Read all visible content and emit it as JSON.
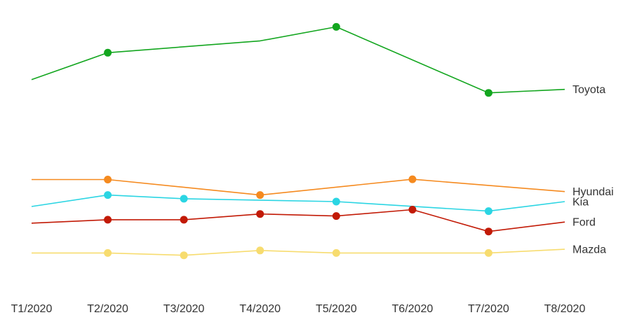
{
  "chart_data": {
    "type": "line",
    "categories": [
      "T1/2020",
      "T2/2020",
      "T3/2020",
      "T4/2020",
      "T5/2020",
      "T6/2020",
      "T7/2020",
      "T8/2020"
    ],
    "ylim": [
      0,
      100
    ],
    "grid": false,
    "legend": "none",
    "series": [
      {
        "name": "Toyota",
        "color": "#13a61f",
        "values": [
          82,
          91.4,
          null,
          95.5,
          100.4,
          null,
          77.4,
          78.6
        ],
        "markers": [
          false,
          true,
          false,
          false,
          true,
          false,
          true,
          false
        ]
      },
      {
        "name": "Hyundai",
        "color": "#f58a1f",
        "values": [
          47.2,
          47.2,
          null,
          41.8,
          null,
          47.3,
          null,
          43
        ],
        "markers": [
          false,
          true,
          false,
          true,
          false,
          true,
          false,
          false
        ]
      },
      {
        "name": "Kia",
        "color": "#2bd5e3",
        "values": [
          37.8,
          41.8,
          40.5,
          null,
          39.5,
          null,
          36.2,
          39.5
        ],
        "markers": [
          false,
          true,
          true,
          false,
          true,
          false,
          true,
          false
        ]
      },
      {
        "name": "Ford",
        "color": "#c21a06",
        "values": [
          32,
          33.2,
          33.2,
          35.2,
          34.5,
          36.7,
          29.1,
          32.4
        ],
        "markers": [
          false,
          true,
          true,
          true,
          true,
          true,
          true,
          false
        ]
      },
      {
        "name": "Mazda",
        "color": "#f7dc6f",
        "values": [
          21.6,
          21.6,
          20.8,
          22.5,
          21.6,
          null,
          21.6,
          22.9
        ],
        "markers": [
          false,
          true,
          true,
          true,
          true,
          false,
          true,
          false
        ]
      }
    ]
  }
}
